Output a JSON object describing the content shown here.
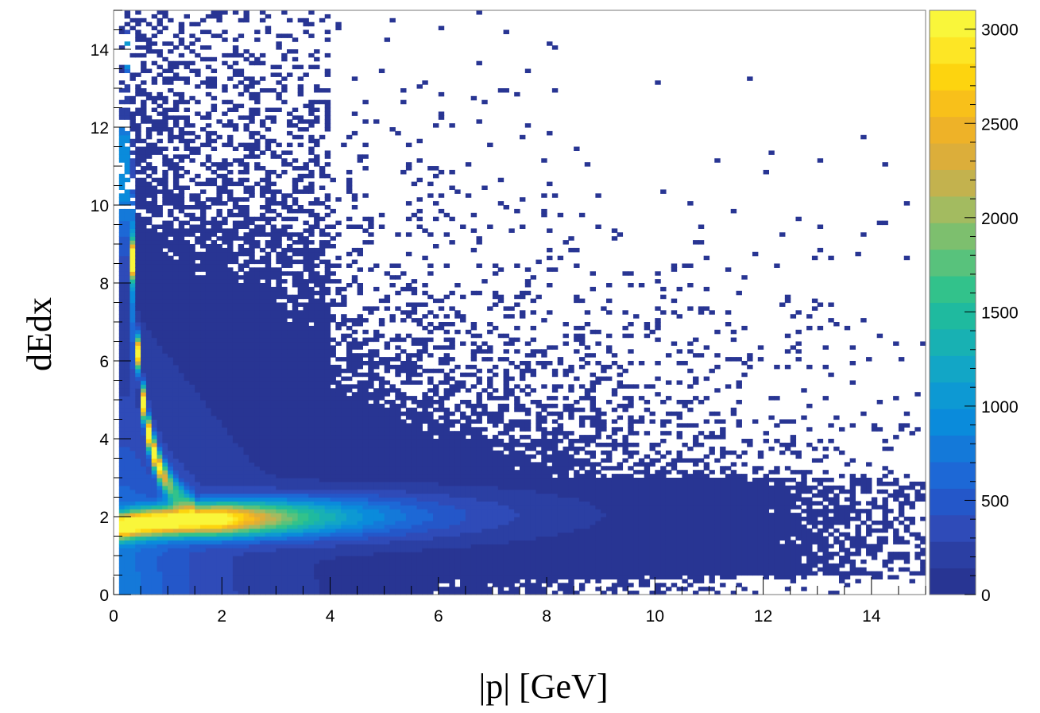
{
  "chart_data": {
    "type": "heatmap",
    "title": "",
    "xlabel": "|p| [GeV]",
    "ylabel": "dEdx",
    "xlim": [
      0,
      15
    ],
    "ylim": [
      0,
      15
    ],
    "x_ticks": [
      0,
      2,
      4,
      6,
      8,
      10,
      12,
      14
    ],
    "y_ticks": [
      0,
      2,
      4,
      6,
      8,
      10,
      12,
      14
    ],
    "x_tick_labels": [
      "0",
      "2",
      "4",
      "6",
      "8",
      "10",
      "12",
      "14"
    ],
    "y_tick_labels": [
      "0",
      "2",
      "4",
      "6",
      "8",
      "10",
      "12",
      "14"
    ],
    "bins": {
      "nx": 150,
      "ny": 150,
      "bin_width_x": 0.1,
      "bin_width_y": 0.1
    },
    "colorbar": {
      "zlim": [
        0,
        3100
      ],
      "ticks": [
        0,
        500,
        1000,
        1500,
        2000,
        2500,
        3000
      ],
      "tick_labels": [
        "0",
        "500",
        "1000",
        "1500",
        "2000",
        "2500",
        "3000"
      ],
      "palette": [
        "#283593",
        "#2b3fa3",
        "#2f4bb8",
        "#2457c9",
        "#1d68d6",
        "#1479d9",
        "#0a8bdb",
        "#0d99d3",
        "#12a6c6",
        "#18b1b3",
        "#1fba9f",
        "#32c28b",
        "#58c27c",
        "#7dbf6e",
        "#a3bb60",
        "#c3b24e",
        "#dcae3a",
        "#eeb228",
        "#f8c01a",
        "#fdd40f",
        "#fde625",
        "#f9f63a"
      ]
    },
    "features": [
      {
        "name": "proton/kaon band",
        "description": "steep 1/p^2-like band from dEdx~10 at p~0.2 down to dEdx~2 at p~1.2",
        "peak_counts": 3000
      },
      {
        "name": "MIP band",
        "description": "horizontal band at dEdx~1.8-2.0 from p~0.3 to p~5.5",
        "peak_counts": 3000
      }
    ],
    "grid": false,
    "legend": "colorbar-right"
  }
}
